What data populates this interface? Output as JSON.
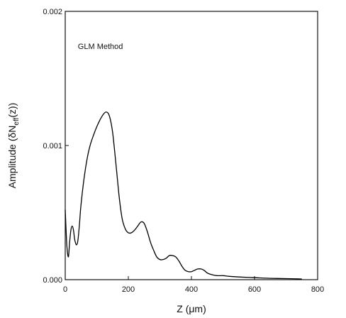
{
  "chart_data": {
    "type": "line",
    "title": "",
    "xlabel": "Z (μm)",
    "ylabel": "Amplitude (δN",
    "ylabel_sub": "eff",
    "ylabel_tail": "(z))",
    "xlim": [
      0,
      800
    ],
    "ylim": [
      0,
      0.002
    ],
    "xticks": [
      0,
      200,
      400,
      600,
      800
    ],
    "xtick_labels": [
      "0",
      "200",
      "400",
      "600",
      "800"
    ],
    "yticks": [
      0,
      0.001,
      0.002
    ],
    "ytick_labels": [
      "0.000",
      "0.001",
      "0.002"
    ],
    "grid": false,
    "legend": "none",
    "annotations": [
      {
        "text": "GLM  Method",
        "x": 40,
        "y": 0.00172
      }
    ],
    "series": [
      {
        "color": "#000000",
        "x": [
          0,
          5,
          10,
          14,
          18,
          22,
          26,
          30,
          35,
          40,
          45,
          50,
          60,
          70,
          80,
          90,
          100,
          110,
          120,
          130,
          140,
          150,
          160,
          170,
          180,
          190,
          200,
          210,
          220,
          230,
          240,
          250,
          260,
          270,
          280,
          290,
          300,
          310,
          320,
          330,
          340,
          350,
          360,
          370,
          380,
          390,
          400,
          410,
          420,
          430,
          440,
          450,
          460,
          480,
          500,
          520,
          550,
          600,
          650,
          700,
          750
        ],
        "y": [
          0.00052,
          0.00026,
          0.00017,
          0.00028,
          0.00037,
          0.0004,
          0.00037,
          0.0003,
          0.00026,
          0.00029,
          0.00041,
          0.00056,
          0.00076,
          0.00091,
          0.00101,
          0.00108,
          0.00114,
          0.00119,
          0.00123,
          0.00125,
          0.00122,
          0.0011,
          0.00088,
          0.00064,
          0.00046,
          0.00038,
          0.00035,
          0.00035,
          0.00037,
          0.0004,
          0.00043,
          0.00042,
          0.00036,
          0.00028,
          0.00022,
          0.00017,
          0.00015,
          0.00015,
          0.00016,
          0.00018,
          0.00018,
          0.00017,
          0.00014,
          0.0001,
          7e-05,
          6e-05,
          6e-05,
          7e-05,
          8e-05,
          8e-05,
          7e-05,
          5e-05,
          4e-05,
          3e-05,
          3e-05,
          2.5e-05,
          2e-05,
          1.5e-05,
          1e-05,
          8e-06,
          5e-06
        ]
      }
    ]
  }
}
